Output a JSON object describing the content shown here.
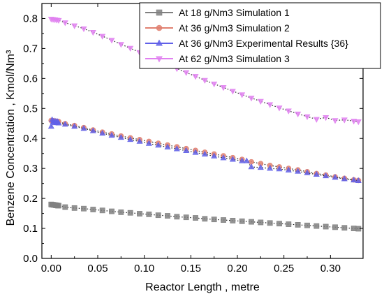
{
  "chart_data": {
    "type": "line",
    "xlabel": "Reactor Length , metre",
    "ylabel": "Benzene Concentration , Kmol/Nm³",
    "xlim": [
      -0.01,
      0.335
    ],
    "ylim": [
      0.0,
      0.85
    ],
    "xticks": [
      "0.00",
      "0.05",
      "0.10",
      "0.15",
      "0.20",
      "0.25",
      "0.30"
    ],
    "yticks": [
      "0.0",
      "0.1",
      "0.2",
      "0.3",
      "0.4",
      "0.5",
      "0.6",
      "0.7",
      "0.8"
    ],
    "legend_position": "top-right",
    "series": [
      {
        "name": "At 18 g/Nm3 Simulation 1",
        "color": "#808080",
        "marker": "square",
        "x": [
          0.0,
          0.001,
          0.002,
          0.003,
          0.004,
          0.005,
          0.006,
          0.007,
          0.008,
          0.015,
          0.025,
          0.035,
          0.045,
          0.055,
          0.065,
          0.075,
          0.085,
          0.095,
          0.105,
          0.115,
          0.125,
          0.135,
          0.145,
          0.155,
          0.165,
          0.175,
          0.185,
          0.195,
          0.205,
          0.215,
          0.225,
          0.235,
          0.245,
          0.255,
          0.265,
          0.275,
          0.285,
          0.295,
          0.305,
          0.315,
          0.325,
          0.33
        ],
        "y": [
          0.18,
          0.179,
          0.179,
          0.178,
          0.178,
          0.177,
          0.177,
          0.176,
          0.176,
          0.171,
          0.168,
          0.166,
          0.163,
          0.16,
          0.157,
          0.154,
          0.152,
          0.149,
          0.147,
          0.144,
          0.142,
          0.139,
          0.137,
          0.135,
          0.132,
          0.13,
          0.128,
          0.126,
          0.124,
          0.122,
          0.12,
          0.118,
          0.116,
          0.114,
          0.112,
          0.11,
          0.108,
          0.106,
          0.104,
          0.102,
          0.1,
          0.099
        ]
      },
      {
        "name": "At 36 g/Nm3 Simulation 2",
        "color": "#e08070",
        "marker": "circle",
        "x": [
          0.0,
          0.002,
          0.004,
          0.006,
          0.008,
          0.015,
          0.025,
          0.035,
          0.045,
          0.055,
          0.065,
          0.075,
          0.085,
          0.095,
          0.105,
          0.115,
          0.125,
          0.135,
          0.145,
          0.155,
          0.165,
          0.175,
          0.185,
          0.195,
          0.205,
          0.215,
          0.225,
          0.235,
          0.245,
          0.255,
          0.265,
          0.275,
          0.285,
          0.295,
          0.305,
          0.315,
          0.325,
          0.33
        ],
        "y": [
          0.46,
          0.459,
          0.458,
          0.457,
          0.456,
          0.449,
          0.443,
          0.436,
          0.428,
          0.421,
          0.415,
          0.408,
          0.402,
          0.396,
          0.39,
          0.384,
          0.378,
          0.372,
          0.366,
          0.36,
          0.354,
          0.348,
          0.342,
          0.336,
          0.33,
          0.322,
          0.316,
          0.31,
          0.305,
          0.3,
          0.295,
          0.289,
          0.283,
          0.278,
          0.272,
          0.267,
          0.262,
          0.26
        ]
      },
      {
        "name": "At 36 g/Nm3 Experimental Results {36}",
        "color": "#6060e8",
        "marker": "triangle-up",
        "x": [
          0.0,
          0.001,
          0.002,
          0.003,
          0.004,
          0.005,
          0.006,
          0.007,
          0.008,
          0.015,
          0.025,
          0.035,
          0.045,
          0.055,
          0.065,
          0.075,
          0.085,
          0.095,
          0.105,
          0.115,
          0.125,
          0.135,
          0.145,
          0.155,
          0.165,
          0.175,
          0.185,
          0.195,
          0.205,
          0.21,
          0.215,
          0.225,
          0.235,
          0.245,
          0.255,
          0.265,
          0.275,
          0.285,
          0.295,
          0.305,
          0.315,
          0.325,
          0.33
        ],
        "y": [
          0.44,
          0.462,
          0.455,
          0.458,
          0.452,
          0.457,
          0.453,
          0.456,
          0.451,
          0.447,
          0.44,
          0.433,
          0.425,
          0.417,
          0.41,
          0.403,
          0.396,
          0.39,
          0.383,
          0.377,
          0.371,
          0.365,
          0.359,
          0.353,
          0.347,
          0.341,
          0.335,
          0.33,
          0.325,
          0.325,
          0.305,
          0.303,
          0.3,
          0.298,
          0.294,
          0.29,
          0.285,
          0.28,
          0.275,
          0.27,
          0.265,
          0.261,
          0.259
        ]
      },
      {
        "name": "At 62 g/Nm3 Simulation 3",
        "color": "#e080f0",
        "marker": "triangle-down",
        "x": [
          0.0,
          0.002,
          0.004,
          0.006,
          0.008,
          0.015,
          0.025,
          0.035,
          0.045,
          0.055,
          0.065,
          0.075,
          0.085,
          0.095,
          0.105,
          0.115,
          0.125,
          0.135,
          0.145,
          0.155,
          0.165,
          0.175,
          0.185,
          0.195,
          0.205,
          0.215,
          0.225,
          0.235,
          0.245,
          0.255,
          0.265,
          0.275,
          0.285,
          0.295,
          0.305,
          0.315,
          0.325,
          0.33
        ],
        "y": [
          0.798,
          0.797,
          0.796,
          0.795,
          0.794,
          0.786,
          0.776,
          0.766,
          0.754,
          0.741,
          0.728,
          0.714,
          0.701,
          0.687,
          0.673,
          0.66,
          0.646,
          0.633,
          0.62,
          0.607,
          0.594,
          0.582,
          0.57,
          0.558,
          0.546,
          0.535,
          0.524,
          0.513,
          0.502,
          0.492,
          0.482,
          0.473,
          0.464,
          0.47,
          0.46,
          0.462,
          0.458,
          0.456
        ]
      }
    ]
  }
}
